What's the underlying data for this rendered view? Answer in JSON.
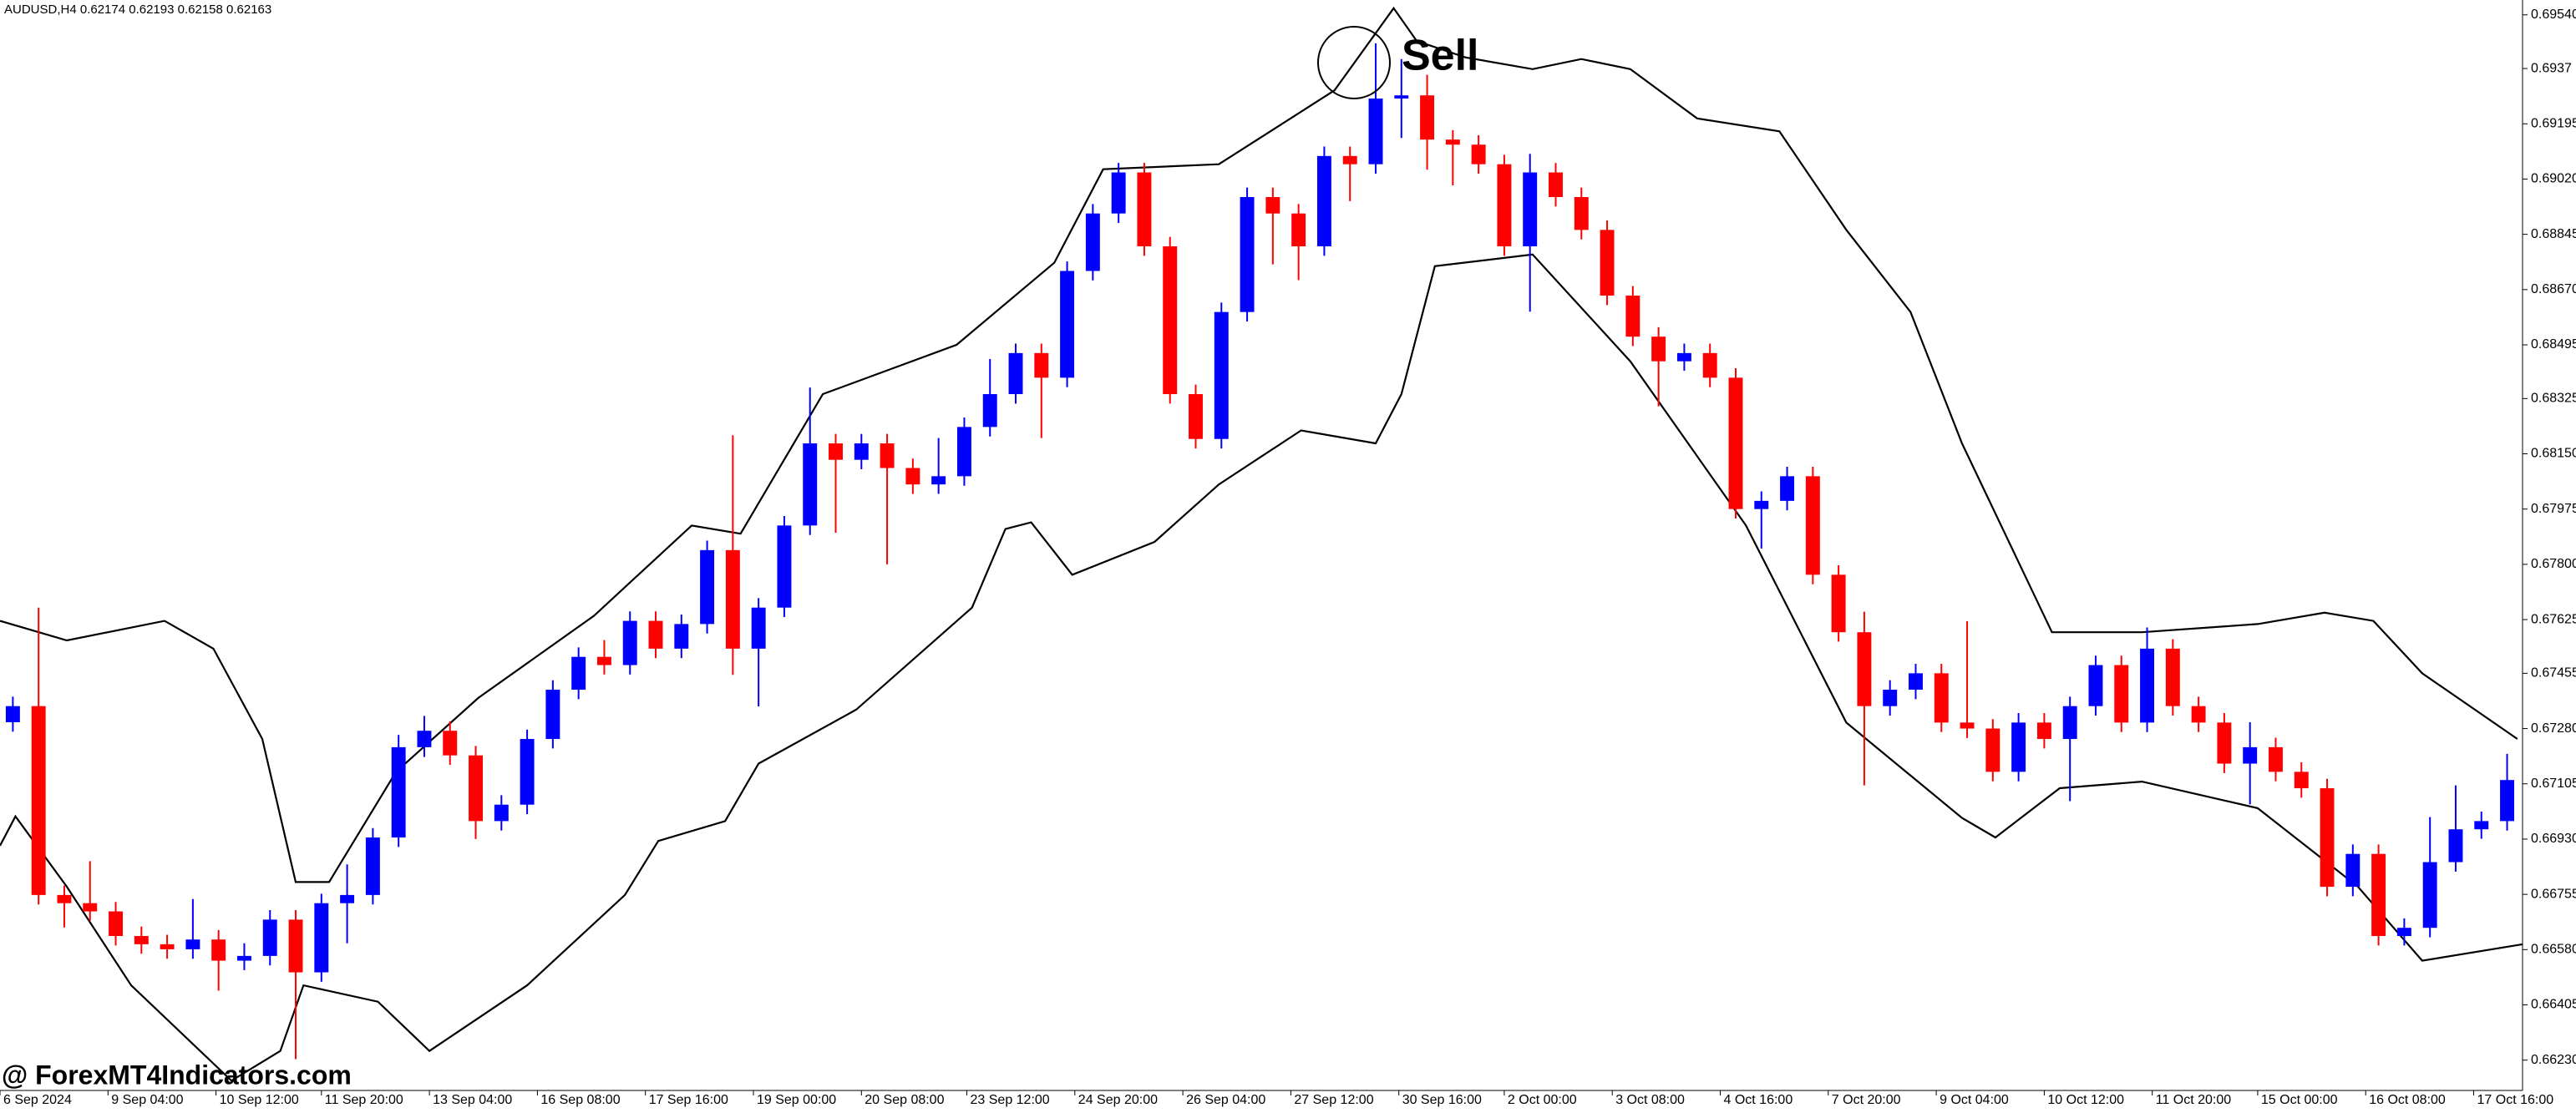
{
  "chart_data": {
    "type": "candlestick",
    "title": "AUDUSD,H4  0.62174 0.62193 0.62158 0.62163",
    "annotation": "Sell",
    "watermark": "@ ForexMT4Indicators.com",
    "up_color": "#0000ff",
    "down_color": "#ff0000",
    "xlim": [
      -0.5,
      97.6
    ],
    "xticks": [
      {
        "value": -0.5,
        "label": "6 Sep 2024"
      },
      {
        "value": 3.7,
        "label": "9 Sep 04:00"
      },
      {
        "value": 7.9,
        "label": "10 Sep 12:00"
      },
      {
        "value": 12.0,
        "label": "11 Sep 20:00"
      },
      {
        "value": 16.2,
        "label": "13 Sep 04:00"
      },
      {
        "value": 20.4,
        "label": "16 Sep 08:00"
      },
      {
        "value": 24.6,
        "label": "17 Sep 16:00"
      },
      {
        "value": 28.8,
        "label": "19 Sep 00:00"
      },
      {
        "value": 33.0,
        "label": "20 Sep 08:00"
      },
      {
        "value": 37.1,
        "label": "23 Sep 12:00"
      },
      {
        "value": 41.3,
        "label": "24 Sep 20:00"
      },
      {
        "value": 45.5,
        "label": "26 Sep 04:00"
      },
      {
        "value": 49.7,
        "label": "27 Sep 12:00"
      },
      {
        "value": 53.9,
        "label": "30 Sep 16:00"
      },
      {
        "value": 58.0,
        "label": "2 Oct 00:00"
      },
      {
        "value": 62.2,
        "label": "3 Oct 08:00"
      },
      {
        "value": 66.4,
        "label": "4 Oct 16:00"
      },
      {
        "value": 70.6,
        "label": "7 Oct 20:00"
      },
      {
        "value": 74.8,
        "label": "9 Oct 04:00"
      },
      {
        "value": 79.0,
        "label": "10 Oct 12:00"
      },
      {
        "value": 83.2,
        "label": "11 Oct 20:00"
      },
      {
        "value": 87.3,
        "label": "15 Oct 00:00"
      },
      {
        "value": 91.5,
        "label": "16 Oct 08:00"
      },
      {
        "value": 95.7,
        "label": "17 Oct 16:00"
      }
    ],
    "ylim": [
      0.66134,
      0.69587
    ],
    "yticks": [
      {
        "value": 0.6954,
        "label": "0.69540"
      },
      0.6937,
      0.69195,
      {
        "value": 0.6902,
        "label": "0.69020"
      },
      0.68845,
      {
        "value": 0.6867,
        "label": "0.68670"
      },
      0.68495,
      0.68325,
      {
        "value": 0.6815,
        "label": "0.68150"
      },
      0.67975,
      {
        "value": 0.678,
        "label": "0.67800"
      },
      0.67625,
      0.67455,
      {
        "value": 0.6728,
        "label": "0.67280"
      },
      0.67105,
      {
        "value": 0.6693,
        "label": "0.66930"
      },
      0.66755,
      {
        "value": 0.6658,
        "label": "0.66580"
      },
      0.66405,
      {
        "value": 0.6623,
        "label": "0.66230"
      }
    ],
    "open": [
      0.673,
      0.67351,
      0.66753,
      0.66727,
      0.66701,
      0.66623,
      0.66597,
      0.66581,
      0.66612,
      0.66545,
      0.6656,
      0.66675,
      0.66508,
      0.66727,
      0.66753,
      0.66935,
      0.67221,
      0.67273,
      0.67195,
      0.66987,
      0.67039,
      0.67247,
      0.67403,
      0.67507,
      0.67481,
      0.67621,
      0.67533,
      0.67611,
      0.67845,
      0.67533,
      0.67663,
      0.67923,
      0.68183,
      0.68131,
      0.68183,
      0.68105,
      0.68053,
      0.68079,
      0.68235,
      0.68339,
      0.68469,
      0.68391,
      0.68729,
      0.68911,
      0.69041,
      0.68807,
      0.68339,
      0.68197,
      0.68599,
      0.68963,
      0.68911,
      0.68807,
      0.69093,
      0.69067,
      0.69275,
      0.69285,
      0.69145,
      0.69129,
      0.69067,
      0.68807,
      0.69041,
      0.68963,
      0.68859,
      0.68651,
      0.68521,
      0.68443,
      0.68469,
      0.68391,
      0.67975,
      0.68001,
      0.68079,
      0.67767,
      0.67585,
      0.67351,
      0.67403,
      0.67455,
      0.67299,
      0.6728,
      0.67143,
      0.67299,
      0.67247,
      0.67351,
      0.67481,
      0.67299,
      0.67533,
      0.67351,
      0.67299,
      0.67169,
      0.67221,
      0.67143,
      0.67091,
      0.66779,
      0.66883,
      0.66623,
      0.66649,
      0.66857,
      0.66961,
      0.66987
    ],
    "high": [
      0.67381,
      0.67663,
      0.66783,
      0.6686,
      0.66731,
      0.66653,
      0.66627,
      0.6674,
      0.66642,
      0.666,
      0.66705,
      0.66705,
      0.66757,
      0.6685,
      0.66965,
      0.6726,
      0.6732,
      0.67303,
      0.67225,
      0.67069,
      0.67277,
      0.67433,
      0.67537,
      0.6756,
      0.67651,
      0.67651,
      0.67641,
      0.67875,
      0.68209,
      0.67693,
      0.67953,
      0.6836,
      0.68213,
      0.68213,
      0.68213,
      0.68135,
      0.682,
      0.68265,
      0.6845,
      0.68499,
      0.68499,
      0.68759,
      0.68941,
      0.69071,
      0.69071,
      0.68837,
      0.68369,
      0.68629,
      0.68993,
      0.68993,
      0.68941,
      0.69123,
      0.69123,
      0.6945,
      0.694,
      0.6935,
      0.69175,
      0.69159,
      0.69097,
      0.691,
      0.69071,
      0.68993,
      0.68889,
      0.68681,
      0.68551,
      0.68499,
      0.68499,
      0.68421,
      0.68031,
      0.68109,
      0.68109,
      0.67797,
      0.6765,
      0.67433,
      0.67485,
      0.67485,
      0.6762,
      0.6731,
      0.67329,
      0.67329,
      0.67381,
      0.67511,
      0.67511,
      0.676,
      0.67563,
      0.67381,
      0.67329,
      0.673,
      0.67251,
      0.67173,
      0.67121,
      0.66913,
      0.66913,
      0.66679,
      0.67,
      0.671,
      0.67017,
      0.672
    ],
    "low": [
      0.6727,
      0.66723,
      0.6665,
      0.66671,
      0.66593,
      0.66567,
      0.66551,
      0.66551,
      0.6645,
      0.66515,
      0.6653,
      0.66233,
      0.66478,
      0.666,
      0.66723,
      0.66905,
      0.6719,
      0.67165,
      0.6693,
      0.66957,
      0.67009,
      0.67217,
      0.67373,
      0.67451,
      0.67451,
      0.67503,
      0.67503,
      0.67581,
      0.6745,
      0.6735,
      0.67633,
      0.67893,
      0.679,
      0.68101,
      0.678,
      0.68023,
      0.68023,
      0.68049,
      0.68205,
      0.68309,
      0.682,
      0.68361,
      0.68699,
      0.68881,
      0.68777,
      0.68309,
      0.68167,
      0.68167,
      0.68569,
      0.6875,
      0.687,
      0.68777,
      0.6895,
      0.69037,
      0.6915,
      0.6905,
      0.69,
      0.69037,
      0.68777,
      0.686,
      0.68933,
      0.68829,
      0.68621,
      0.68491,
      0.683,
      0.68413,
      0.68361,
      0.67945,
      0.6785,
      0.67971,
      0.67737,
      0.67555,
      0.671,
      0.67321,
      0.67373,
      0.67269,
      0.6725,
      0.67113,
      0.67113,
      0.67217,
      0.6705,
      0.67321,
      0.67269,
      0.67269,
      0.67321,
      0.67269,
      0.67139,
      0.6704,
      0.67113,
      0.67061,
      0.66749,
      0.66749,
      0.66593,
      0.66593,
      0.66619,
      0.66827,
      0.66931,
      0.66957
    ],
    "close": [
      0.67351,
      0.66753,
      0.66727,
      0.66701,
      0.66623,
      0.66597,
      0.66581,
      0.66612,
      0.66545,
      0.6656,
      0.66675,
      0.66508,
      0.66727,
      0.66753,
      0.66935,
      0.67221,
      0.67273,
      0.67195,
      0.66987,
      0.67039,
      0.67247,
      0.67403,
      0.67507,
      0.67481,
      0.67621,
      0.67533,
      0.67611,
      0.67845,
      0.67533,
      0.67663,
      0.67923,
      0.68183,
      0.68131,
      0.68183,
      0.68105,
      0.68053,
      0.68079,
      0.68235,
      0.68339,
      0.68469,
      0.68391,
      0.68729,
      0.68911,
      0.69041,
      0.68807,
      0.68339,
      0.68197,
      0.68599,
      0.68963,
      0.68911,
      0.68807,
      0.69093,
      0.69067,
      0.69275,
      0.69285,
      0.69145,
      0.69129,
      0.69067,
      0.68807,
      0.69041,
      0.68963,
      0.68859,
      0.68651,
      0.68521,
      0.68443,
      0.68469,
      0.68391,
      0.67975,
      0.68001,
      0.68079,
      0.67767,
      0.67585,
      0.67351,
      0.67403,
      0.67455,
      0.67299,
      0.6728,
      0.67143,
      0.67299,
      0.67247,
      0.67351,
      0.67481,
      0.67299,
      0.67533,
      0.67351,
      0.67299,
      0.67169,
      0.67221,
      0.67143,
      0.67091,
      0.66779,
      0.66883,
      0.66623,
      0.66649,
      0.66857,
      0.66961,
      0.66987,
      0.67117
    ],
    "bands": [
      {
        "color": "#000000",
        "x": [
          -0.5,
          2.1,
          5.9,
          7.8,
          9.7,
          11.0,
          12.3,
          14.9,
          18.1,
          22.6,
          26.4,
          28.3,
          31.5,
          36.7,
          40.5,
          42.4,
          46.9,
          51.4,
          53.7,
          54.6,
          56.5,
          59.1,
          61.0,
          62.9,
          65.5,
          68.7,
          71.3,
          73.8,
          75.8,
          79.3,
          82.8,
          87.3,
          89.9,
          91.8,
          93.7,
          97.4
        ],
        "values": [
          0.67621,
          0.67559,
          0.67621,
          0.67533,
          0.67247,
          0.66794,
          0.66794,
          0.67143,
          0.67377,
          0.67637,
          0.67923,
          0.67897,
          0.68339,
          0.68495,
          0.68755,
          0.69051,
          0.69067,
          0.69301,
          0.69561,
          0.69457,
          0.69405,
          0.69368,
          0.694,
          0.69368,
          0.69212,
          0.69171,
          0.68859,
          0.68599,
          0.68183,
          0.67585,
          0.67585,
          0.67611,
          0.67647,
          0.67621,
          0.67455,
          0.67247
        ]
      },
      {
        "color": "#000000",
        "x": [
          -0.5,
          0.1,
          2.1,
          4.6,
          8.5,
          10.4,
          11.3,
          14.2,
          16.2,
          20.0,
          23.8,
          25.1,
          27.7,
          29.0,
          32.8,
          37.3,
          38.6,
          39.6,
          41.2,
          44.4,
          46.9,
          50.1,
          53.0,
          54.0,
          55.3,
          59.1,
          62.9,
          67.4,
          71.3,
          75.8,
          77.1,
          79.6,
          82.8,
          87.3,
          91.2,
          93.7,
          97.6
        ],
        "values": [
          0.66909,
          0.67002,
          0.66779,
          0.66467,
          0.66165,
          0.66259,
          0.66467,
          0.66415,
          0.66259,
          0.66467,
          0.66753,
          0.66924,
          0.66987,
          0.67169,
          0.6734,
          0.67663,
          0.67912,
          0.67933,
          0.67767,
          0.67871,
          0.68053,
          0.68224,
          0.68183,
          0.68339,
          0.68744,
          0.68781,
          0.68443,
          0.67923,
          0.67299,
          0.66997,
          0.66935,
          0.67091,
          0.67112,
          0.67028,
          0.66779,
          0.66545,
          0.66597
        ]
      }
    ]
  }
}
